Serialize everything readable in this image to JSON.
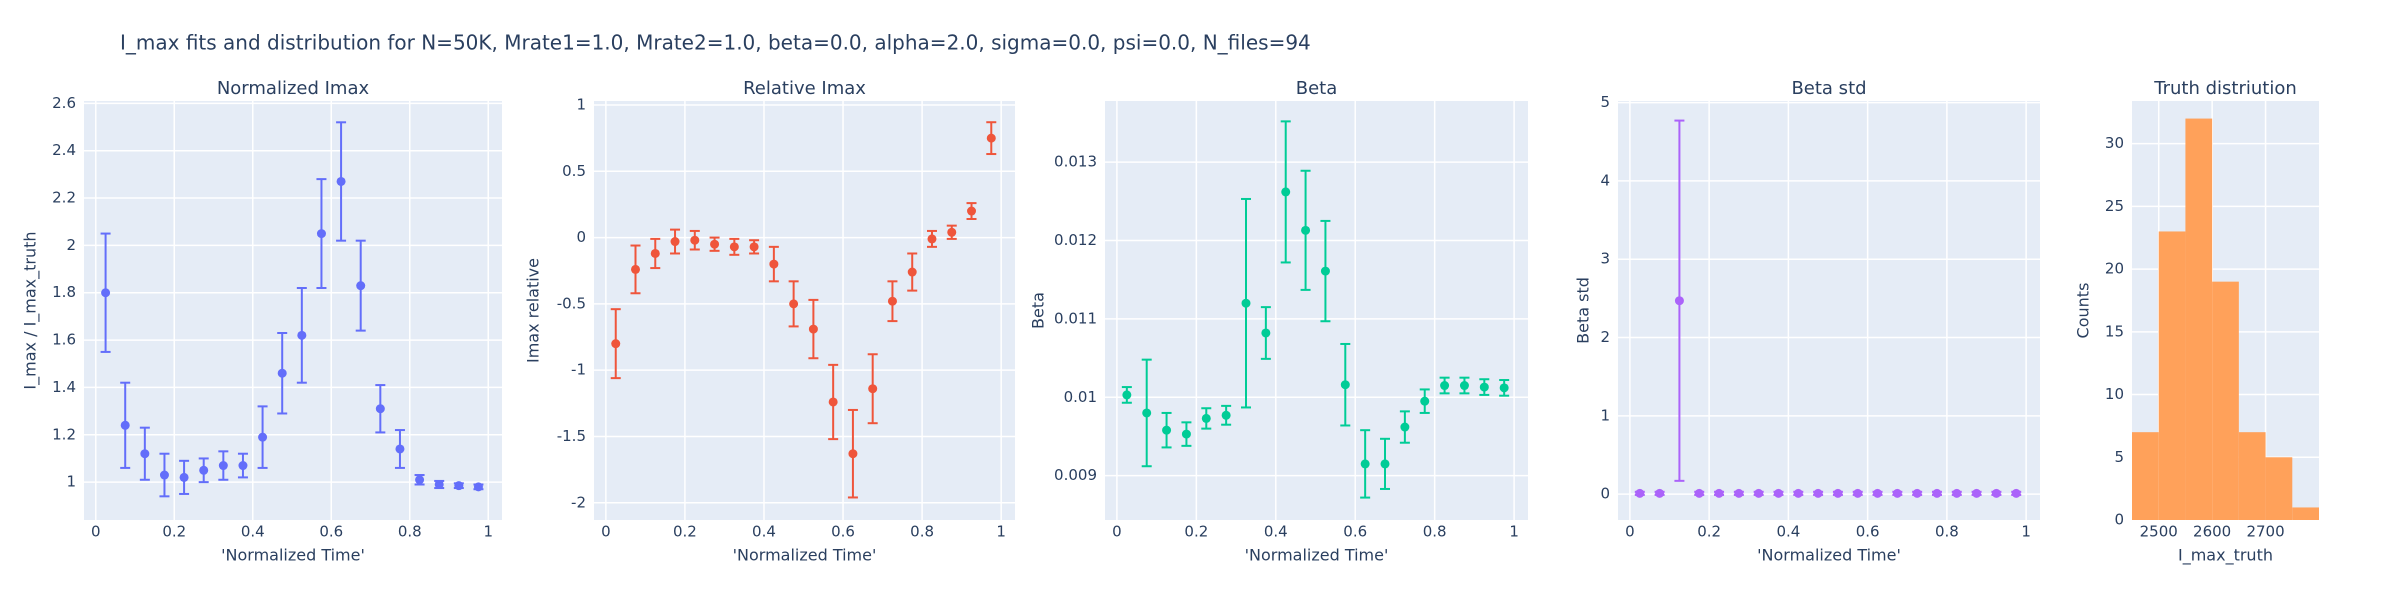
{
  "title": "I_max fits and distribution for N=50K, Mrate1=1.0, Mrate2=1.0, beta=0.0, alpha=2.0, sigma=0.0,  psi=0.0, N_files=94",
  "chart_data": [
    {
      "type": "scatter",
      "title": "Normalized Imax",
      "xlabel": "'Normalized Time'",
      "ylabel": "I_max / I_max_truth",
      "color": "#636efa",
      "x": [
        0.025,
        0.075,
        0.125,
        0.175,
        0.225,
        0.275,
        0.325,
        0.375,
        0.425,
        0.475,
        0.525,
        0.575,
        0.625,
        0.675,
        0.725,
        0.775,
        0.825,
        0.875,
        0.925,
        0.975
      ],
      "values": [
        1.8,
        1.24,
        1.12,
        1.03,
        1.02,
        1.05,
        1.07,
        1.07,
        1.19,
        1.46,
        1.62,
        2.05,
        2.27,
        1.83,
        1.31,
        1.14,
        1.01,
        0.99,
        0.985,
        0.98
      ],
      "errors": [
        0.25,
        0.18,
        0.11,
        0.09,
        0.07,
        0.05,
        0.06,
        0.05,
        0.13,
        0.17,
        0.2,
        0.23,
        0.25,
        0.19,
        0.1,
        0.08,
        0.02,
        0.015,
        0.01,
        0.01
      ],
      "xlim": [
        -0.03,
        1.035
      ],
      "xticks": [
        0,
        0.2,
        0.4,
        0.6,
        0.8,
        1
      ],
      "ylim": [
        0.84,
        2.61
      ],
      "yticks": [
        1,
        1.2,
        1.4,
        1.6,
        1.8,
        2,
        2.2,
        2.4,
        2.6
      ],
      "grid": true
    },
    {
      "type": "scatter",
      "title": "Relative Imax",
      "xlabel": "'Normalized Time'",
      "ylabel": "Imax relative",
      "color": "#EF553B",
      "x": [
        0.025,
        0.075,
        0.125,
        0.175,
        0.225,
        0.275,
        0.325,
        0.375,
        0.425,
        0.475,
        0.525,
        0.575,
        0.625,
        0.675,
        0.725,
        0.775,
        0.825,
        0.875,
        0.925,
        0.975
      ],
      "values": [
        -0.8,
        -0.24,
        -0.12,
        -0.03,
        -0.02,
        -0.05,
        -0.07,
        -0.07,
        -0.2,
        -0.5,
        -0.69,
        -1.24,
        -1.63,
        -1.14,
        -0.48,
        -0.26,
        -0.01,
        0.04,
        0.2,
        0.75
      ],
      "errors": [
        0.26,
        0.18,
        0.11,
        0.09,
        0.07,
        0.05,
        0.06,
        0.05,
        0.13,
        0.17,
        0.22,
        0.28,
        0.33,
        0.26,
        0.15,
        0.14,
        0.06,
        0.05,
        0.06,
        0.12
      ],
      "xlim": [
        -0.03,
        1.035
      ],
      "xticks": [
        0,
        0.2,
        0.4,
        0.6,
        0.8,
        1
      ],
      "ylim": [
        -2.13,
        1.03
      ],
      "yticks": [
        -2,
        -1.5,
        -1,
        -0.5,
        0,
        0.5,
        1
      ],
      "grid": true
    },
    {
      "type": "scatter",
      "title": "Beta",
      "xlabel": "'Normalized Time'",
      "ylabel": "Beta",
      "color": "#00cc96",
      "x": [
        0.025,
        0.075,
        0.125,
        0.175,
        0.225,
        0.275,
        0.325,
        0.375,
        0.425,
        0.475,
        0.525,
        0.575,
        0.625,
        0.675,
        0.725,
        0.775,
        0.825,
        0.875,
        0.925,
        0.975
      ],
      "values": [
        0.01003,
        0.0098,
        0.00958,
        0.00953,
        0.00973,
        0.00977,
        0.0112,
        0.01082,
        0.01262,
        0.01213,
        0.01161,
        0.01016,
        0.00915,
        0.00915,
        0.00962,
        0.00995,
        0.01015,
        0.01015,
        0.01013,
        0.01012
      ],
      "errors": [
        0.0001,
        0.00068,
        0.00022,
        0.00015,
        0.00013,
        0.00012,
        0.00133,
        0.00033,
        0.0009,
        0.00076,
        0.00064,
        0.00052,
        0.00043,
        0.00032,
        0.0002,
        0.00015,
        0.0001,
        0.0001,
        0.0001,
        0.0001
      ],
      "xlim": [
        -0.03,
        1.035
      ],
      "xticks": [
        0,
        0.2,
        0.4,
        0.6,
        0.8,
        1
      ],
      "ylim": [
        0.008434,
        0.01378
      ],
      "yticks": [
        0.009,
        0.01,
        0.011,
        0.012,
        0.013
      ],
      "grid": true
    },
    {
      "type": "scatter",
      "title": "Beta std",
      "xlabel": "'Normalized Time'",
      "ylabel": "Beta std",
      "color": "#ab63fa",
      "x": [
        0.025,
        0.075,
        0.125,
        0.175,
        0.225,
        0.275,
        0.325,
        0.375,
        0.425,
        0.475,
        0.525,
        0.575,
        0.625,
        0.675,
        0.725,
        0.775,
        0.825,
        0.875,
        0.925,
        0.975
      ],
      "values": [
        0.01,
        0.01,
        2.47,
        0.01,
        0.01,
        0.01,
        0.01,
        0.01,
        0.01,
        0.01,
        0.01,
        0.01,
        0.01,
        0.01,
        0.01,
        0.01,
        0.01,
        0.01,
        0.01,
        0.01
      ],
      "errors": [
        0.02,
        0.02,
        2.3,
        0.02,
        0.02,
        0.02,
        0.02,
        0.02,
        0.02,
        0.02,
        0.02,
        0.02,
        0.02,
        0.02,
        0.02,
        0.02,
        0.02,
        0.02,
        0.02,
        0.02
      ],
      "xlim": [
        -0.03,
        1.035
      ],
      "xticks": [
        0,
        0.2,
        0.4,
        0.6,
        0.8,
        1
      ],
      "ylim": [
        -0.33,
        5.02
      ],
      "yticks": [
        0,
        1,
        2,
        3,
        4,
        5
      ],
      "grid": true
    },
    {
      "type": "histogram",
      "title": "Truth distriution",
      "xlabel": "I_max_truth",
      "ylabel": "Counts",
      "color": "#FFA15A",
      "bins": [
        2450,
        2500,
        2550,
        2600,
        2650,
        2700,
        2750,
        2800
      ],
      "counts": [
        7,
        23,
        32,
        19,
        7,
        5,
        1
      ],
      "xlim": [
        2450,
        2800
      ],
      "xticks": [
        2500,
        2600,
        2700
      ],
      "ylim": [
        0,
        33.4
      ],
      "yticks": [
        0,
        5,
        10,
        15,
        20,
        25,
        30
      ],
      "grid": true
    }
  ]
}
